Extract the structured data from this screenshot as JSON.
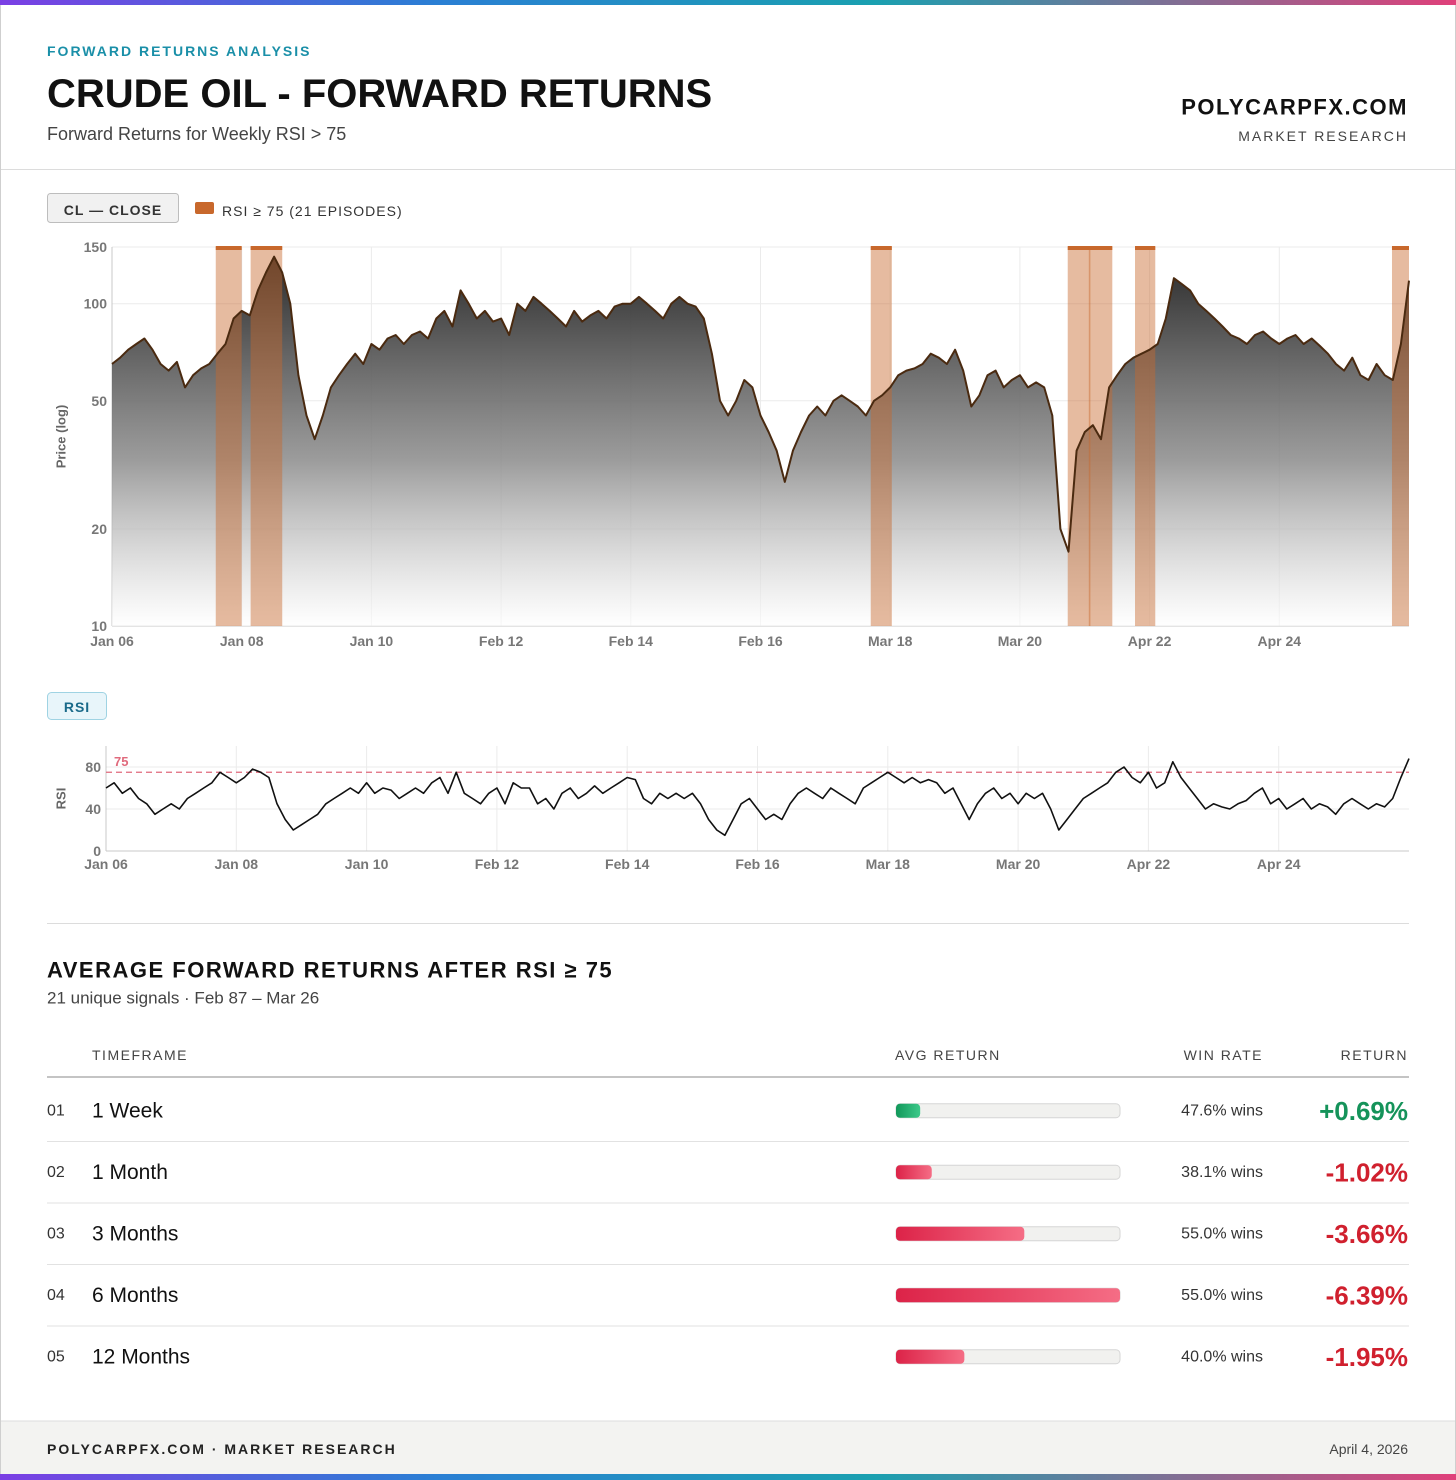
{
  "header": {
    "kicker": "FORWARD RETURNS ANALYSIS",
    "title": "CRUDE OIL - FORWARD RETURNS",
    "subtitle": "Forward Returns for Weekly RSI > 75",
    "brand": "POLYCARPFX.COM",
    "brand_sub": "MARKET RESEARCH"
  },
  "chart_data": [
    {
      "type": "line",
      "y_label": "Price (log)",
      "log_scale": true,
      "grid": true,
      "ylim": [
        10,
        150
      ],
      "yticks": [
        10,
        20,
        50,
        100,
        150
      ],
      "xlim": [
        0,
        160
      ],
      "xticks": [
        {
          "value": 0,
          "label": "Jan 06"
        },
        {
          "value": 16,
          "label": "Jan 08"
        },
        {
          "value": 32,
          "label": "Jan 10"
        },
        {
          "value": 48,
          "label": "Feb 12"
        },
        {
          "value": 64,
          "label": "Feb 14"
        },
        {
          "value": 80,
          "label": "Feb 16"
        },
        {
          "value": 96,
          "label": "Mar 18"
        },
        {
          "value": 112,
          "label": "Mar 20"
        },
        {
          "value": 128,
          "label": "Apr 22"
        },
        {
          "value": 144,
          "label": "Apr 24"
        }
      ],
      "series": [
        {
          "name": "CL — CLOSE",
          "color": "#4a2a10",
          "values": [
            65,
            68,
            72,
            75,
            78,
            72,
            65,
            62,
            66,
            55,
            60,
            63,
            65,
            70,
            75,
            90,
            95,
            92,
            110,
            125,
            140,
            125,
            100,
            60,
            45,
            38,
            45,
            55,
            60,
            65,
            70,
            65,
            75,
            72,
            78,
            80,
            75,
            80,
            82,
            78,
            90,
            95,
            85,
            110,
            100,
            90,
            95,
            88,
            90,
            80,
            100,
            95,
            105,
            100,
            95,
            90,
            85,
            95,
            88,
            92,
            95,
            90,
            98,
            100,
            100,
            105,
            100,
            95,
            90,
            100,
            105,
            100,
            98,
            90,
            70,
            50,
            45,
            50,
            58,
            55,
            45,
            40,
            35,
            28,
            35,
            40,
            45,
            48,
            45,
            50,
            52,
            50,
            48,
            45,
            50,
            52,
            55,
            60,
            62,
            63,
            65,
            70,
            68,
            65,
            72,
            62,
            48,
            52,
            60,
            62,
            55,
            58,
            60,
            55,
            57,
            55,
            45,
            20,
            17,
            35,
            40,
            42,
            38,
            55,
            60,
            65,
            68,
            70,
            72,
            75,
            90,
            120,
            115,
            110,
            100,
            95,
            90,
            85,
            80,
            78,
            75,
            80,
            82,
            78,
            75,
            78,
            80,
            75,
            78,
            74,
            70,
            65,
            62,
            68,
            60,
            58,
            65,
            60,
            58,
            75,
            118
          ]
        }
      ],
      "episodes": {
        "name": "RSI ≥ 75 (21 EPISODES)",
        "color": "#c8682c",
        "ranges": [
          [
            12.8,
            16.0
          ],
          [
            17.1,
            21.0
          ],
          [
            93.6,
            96.2
          ],
          [
            117.9,
            120.7
          ],
          [
            120.5,
            123.4
          ],
          [
            126.2,
            128.7
          ],
          [
            157.9,
            160
          ]
        ]
      }
    },
    {
      "type": "line",
      "y_label": "RSI",
      "grid": true,
      "ylim": [
        0,
        100
      ],
      "yticks": [
        0,
        40,
        80
      ],
      "threshold": 75,
      "threshold_color": "#e06a7c",
      "xlim": [
        0,
        160
      ],
      "xticks": [
        {
          "value": 0,
          "label": "Jan 06"
        },
        {
          "value": 16,
          "label": "Jan 08"
        },
        {
          "value": 32,
          "label": "Jan 10"
        },
        {
          "value": 48,
          "label": "Feb 12"
        },
        {
          "value": 64,
          "label": "Feb 14"
        },
        {
          "value": 80,
          "label": "Feb 16"
        },
        {
          "value": 96,
          "label": "Mar 18"
        },
        {
          "value": 112,
          "label": "Mar 20"
        },
        {
          "value": 128,
          "label": "Apr 22"
        },
        {
          "value": 144,
          "label": "Apr 24"
        }
      ],
      "series": [
        {
          "name": "RSI",
          "color": "#111111",
          "values": [
            60,
            65,
            55,
            60,
            50,
            45,
            35,
            40,
            45,
            40,
            50,
            55,
            60,
            65,
            75,
            70,
            65,
            70,
            78,
            75,
            70,
            45,
            30,
            20,
            25,
            30,
            35,
            45,
            50,
            55,
            60,
            55,
            65,
            55,
            60,
            58,
            50,
            55,
            60,
            55,
            65,
            70,
            55,
            75,
            55,
            50,
            45,
            55,
            60,
            45,
            65,
            60,
            60,
            45,
            50,
            40,
            55,
            60,
            50,
            55,
            62,
            55,
            60,
            65,
            70,
            68,
            50,
            45,
            55,
            50,
            55,
            50,
            55,
            45,
            30,
            20,
            15,
            30,
            45,
            50,
            40,
            30,
            35,
            30,
            45,
            55,
            60,
            55,
            50,
            60,
            55,
            50,
            45,
            60,
            65,
            70,
            75,
            70,
            65,
            70,
            65,
            68,
            65,
            55,
            60,
            45,
            30,
            45,
            55,
            60,
            50,
            55,
            45,
            55,
            50,
            55,
            40,
            20,
            30,
            40,
            50,
            55,
            60,
            65,
            75,
            80,
            70,
            65,
            75,
            60,
            65,
            85,
            70,
            60,
            50,
            40,
            45,
            42,
            40,
            45,
            48,
            55,
            60,
            45,
            50,
            40,
            45,
            50,
            40,
            45,
            42,
            35,
            45,
            50,
            45,
            40,
            45,
            42,
            50,
            70,
            88
          ]
        }
      ]
    }
  ],
  "summary": {
    "title": "AVERAGE FORWARD RETURNS AFTER RSI ≥ 75",
    "subtitle": "21 unique signals · Feb 87 – Mar 26",
    "columns": [
      "TIMEFRAME",
      "AVG RETURN",
      "WIN RATE",
      "RETURN"
    ],
    "rows": [
      {
        "rank": "01",
        "timeframe": "1 Week",
        "avg_return": 0.69,
        "return_label": "+0.69%",
        "win_rate": "47.6% wins"
      },
      {
        "rank": "02",
        "timeframe": "1 Month",
        "avg_return": -1.02,
        "return_label": "-1.02%",
        "win_rate": "38.1% wins"
      },
      {
        "rank": "03",
        "timeframe": "3 Months",
        "avg_return": -3.66,
        "return_label": "-3.66%",
        "win_rate": "55.0% wins"
      },
      {
        "rank": "04",
        "timeframe": "6 Months",
        "avg_return": -6.39,
        "return_label": "-6.39%",
        "win_rate": "55.0% wins"
      },
      {
        "rank": "05",
        "timeframe": "12 Months",
        "avg_return": -1.95,
        "return_label": "-1.95%",
        "win_rate": "40.0% wins"
      }
    ]
  },
  "footer": {
    "left": "POLYCARPFX.COM · MARKET RESEARCH",
    "date": "April 4, 2026"
  }
}
